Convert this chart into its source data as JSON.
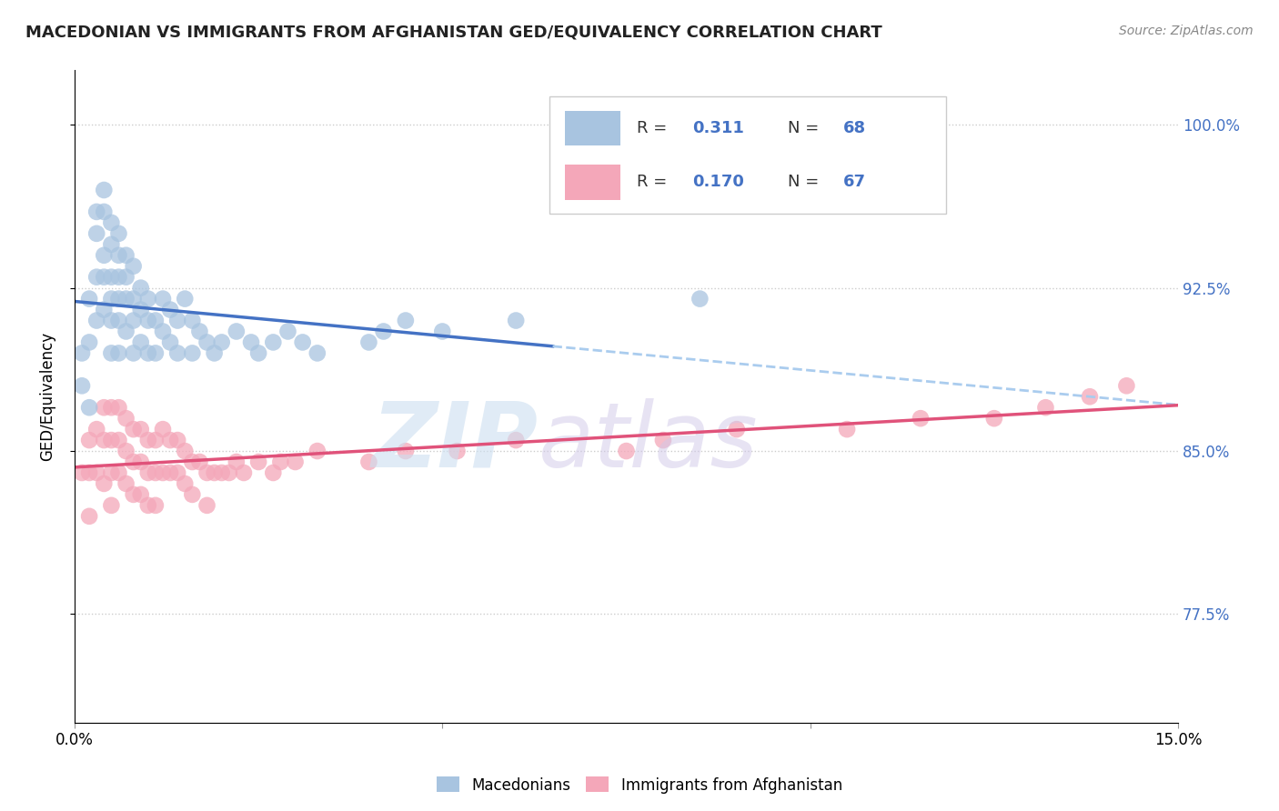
{
  "title": "MACEDONIAN VS IMMIGRANTS FROM AFGHANISTAN GED/EQUIVALENCY CORRELATION CHART",
  "source": "Source: ZipAtlas.com",
  "ylabel": "GED/Equivalency",
  "xlim": [
    0.0,
    0.15
  ],
  "ylim": [
    0.725,
    1.025
  ],
  "yticks": [
    0.775,
    0.85,
    0.925,
    1.0
  ],
  "ytick_labels": [
    "77.5%",
    "85.0%",
    "92.5%",
    "100.0%"
  ],
  "xticks": [
    0.0,
    0.05,
    0.1,
    0.15
  ],
  "xtick_labels": [
    "0.0%",
    "",
    "",
    "15.0%"
  ],
  "mac_color": "#a8c4e0",
  "afg_color": "#f4a7b9",
  "mac_line_color": "#4472c4",
  "afg_line_color": "#e0527a",
  "mac_R": 0.311,
  "mac_N": 68,
  "afg_R": 0.17,
  "afg_N": 67,
  "watermark_zip": "ZIP",
  "watermark_atlas": "atlas",
  "mac_scatter_x": [
    0.001,
    0.001,
    0.002,
    0.002,
    0.002,
    0.003,
    0.003,
    0.003,
    0.003,
    0.004,
    0.004,
    0.004,
    0.004,
    0.004,
    0.005,
    0.005,
    0.005,
    0.005,
    0.005,
    0.005,
    0.006,
    0.006,
    0.006,
    0.006,
    0.006,
    0.006,
    0.007,
    0.007,
    0.007,
    0.007,
    0.008,
    0.008,
    0.008,
    0.008,
    0.009,
    0.009,
    0.009,
    0.01,
    0.01,
    0.01,
    0.011,
    0.011,
    0.012,
    0.012,
    0.013,
    0.013,
    0.014,
    0.014,
    0.015,
    0.016,
    0.016,
    0.017,
    0.018,
    0.019,
    0.02,
    0.022,
    0.024,
    0.025,
    0.027,
    0.029,
    0.031,
    0.033,
    0.04,
    0.042,
    0.045,
    0.05,
    0.06,
    0.085
  ],
  "mac_scatter_y": [
    0.895,
    0.88,
    0.92,
    0.9,
    0.87,
    0.96,
    0.95,
    0.93,
    0.91,
    0.97,
    0.96,
    0.94,
    0.93,
    0.915,
    0.955,
    0.945,
    0.93,
    0.92,
    0.91,
    0.895,
    0.95,
    0.94,
    0.93,
    0.92,
    0.91,
    0.895,
    0.94,
    0.93,
    0.92,
    0.905,
    0.935,
    0.92,
    0.91,
    0.895,
    0.925,
    0.915,
    0.9,
    0.92,
    0.91,
    0.895,
    0.91,
    0.895,
    0.92,
    0.905,
    0.915,
    0.9,
    0.91,
    0.895,
    0.92,
    0.91,
    0.895,
    0.905,
    0.9,
    0.895,
    0.9,
    0.905,
    0.9,
    0.895,
    0.9,
    0.905,
    0.9,
    0.895,
    0.9,
    0.905,
    0.91,
    0.905,
    0.91,
    0.92
  ],
  "afg_scatter_x": [
    0.001,
    0.002,
    0.002,
    0.002,
    0.003,
    0.003,
    0.004,
    0.004,
    0.004,
    0.005,
    0.005,
    0.005,
    0.005,
    0.006,
    0.006,
    0.006,
    0.007,
    0.007,
    0.007,
    0.008,
    0.008,
    0.008,
    0.009,
    0.009,
    0.009,
    0.01,
    0.01,
    0.01,
    0.011,
    0.011,
    0.011,
    0.012,
    0.012,
    0.013,
    0.013,
    0.014,
    0.014,
    0.015,
    0.015,
    0.016,
    0.016,
    0.017,
    0.018,
    0.018,
    0.019,
    0.02,
    0.021,
    0.022,
    0.023,
    0.025,
    0.027,
    0.028,
    0.03,
    0.033,
    0.04,
    0.045,
    0.052,
    0.06,
    0.075,
    0.08,
    0.09,
    0.105,
    0.115,
    0.125,
    0.132,
    0.138,
    0.143
  ],
  "afg_scatter_y": [
    0.84,
    0.855,
    0.84,
    0.82,
    0.86,
    0.84,
    0.87,
    0.855,
    0.835,
    0.87,
    0.855,
    0.84,
    0.825,
    0.87,
    0.855,
    0.84,
    0.865,
    0.85,
    0.835,
    0.86,
    0.845,
    0.83,
    0.86,
    0.845,
    0.83,
    0.855,
    0.84,
    0.825,
    0.855,
    0.84,
    0.825,
    0.86,
    0.84,
    0.855,
    0.84,
    0.855,
    0.84,
    0.85,
    0.835,
    0.845,
    0.83,
    0.845,
    0.84,
    0.825,
    0.84,
    0.84,
    0.84,
    0.845,
    0.84,
    0.845,
    0.84,
    0.845,
    0.845,
    0.85,
    0.845,
    0.85,
    0.85,
    0.855,
    0.85,
    0.855,
    0.86,
    0.86,
    0.865,
    0.865,
    0.87,
    0.875,
    0.88
  ]
}
